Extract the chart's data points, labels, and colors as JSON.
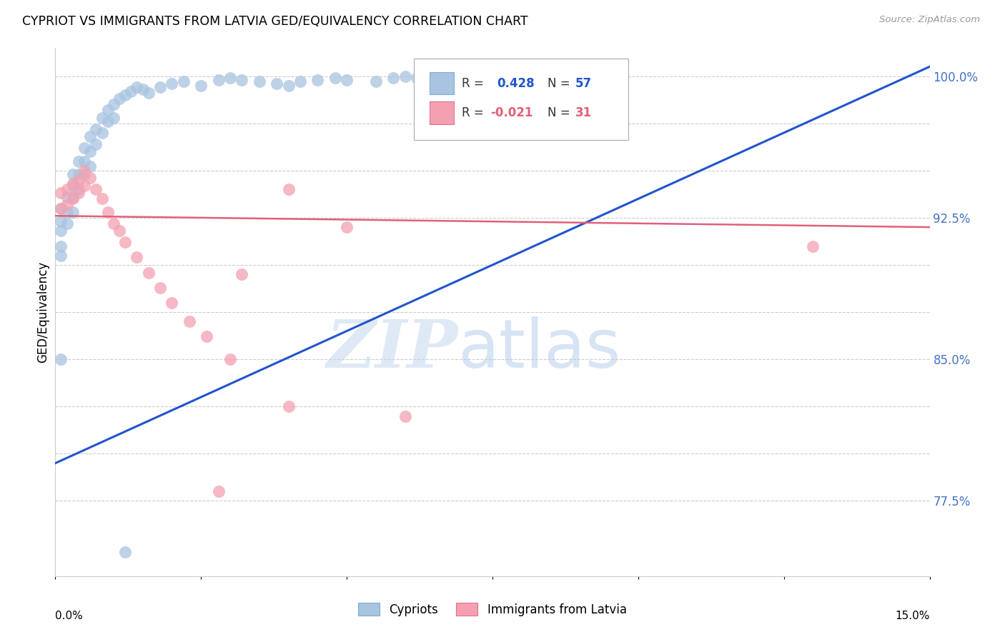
{
  "title": "CYPRIOT VS IMMIGRANTS FROM LATVIA GED/EQUIVALENCY CORRELATION CHART",
  "source": "Source: ZipAtlas.com",
  "ylabel": "GED/Equivalency",
  "xlim": [
    0.0,
    0.15
  ],
  "ylim": [
    0.735,
    1.015
  ],
  "cypriot_color": "#a8c4e0",
  "cypriot_edge": "#7facd8",
  "latvia_color": "#f4a0b0",
  "latvia_edge": "#e07090",
  "trend_blue": "#2255cc",
  "trend_pink": "#e0607a",
  "ytick_vals": [
    0.775,
    0.85,
    0.925,
    1.0
  ],
  "ytick_labels": [
    "77.5%",
    "85.0%",
    "92.5%",
    "100.0%"
  ],
  "grid_y": [
    0.775,
    0.8,
    0.825,
    0.85,
    0.875,
    0.9,
    0.925,
    0.95,
    0.975,
    1.0
  ],
  "legend_label_blue": "Cypriots",
  "legend_label_pink": "Immigrants from Latvia",
  "blue_x": [
    0.001,
    0.001,
    0.001,
    0.001,
    0.001,
    0.002,
    0.002,
    0.002,
    0.003,
    0.003,
    0.003,
    0.003,
    0.004,
    0.004,
    0.004,
    0.005,
    0.005,
    0.005,
    0.006,
    0.006,
    0.006,
    0.007,
    0.007,
    0.008,
    0.008,
    0.009,
    0.009,
    0.01,
    0.01,
    0.011,
    0.012,
    0.013,
    0.014,
    0.015,
    0.016,
    0.018,
    0.02,
    0.022,
    0.025,
    0.028,
    0.03,
    0.032,
    0.035,
    0.038,
    0.04,
    0.042,
    0.045,
    0.048,
    0.05,
    0.055,
    0.058,
    0.06,
    0.062,
    0.064,
    0.065,
    0.001,
    0.012
  ],
  "blue_y": [
    0.93,
    0.923,
    0.918,
    0.91,
    0.905,
    0.936,
    0.928,
    0.922,
    0.948,
    0.942,
    0.936,
    0.928,
    0.955,
    0.948,
    0.94,
    0.962,
    0.955,
    0.948,
    0.968,
    0.96,
    0.952,
    0.972,
    0.964,
    0.978,
    0.97,
    0.982,
    0.976,
    0.985,
    0.978,
    0.988,
    0.99,
    0.992,
    0.994,
    0.993,
    0.991,
    0.994,
    0.996,
    0.997,
    0.995,
    0.998,
    0.999,
    0.998,
    0.997,
    0.996,
    0.995,
    0.997,
    0.998,
    0.999,
    0.998,
    0.997,
    0.999,
    1.0,
    0.999,
    1.0,
    1.0,
    0.85,
    0.748
  ],
  "pink_x": [
    0.001,
    0.001,
    0.002,
    0.002,
    0.003,
    0.003,
    0.004,
    0.004,
    0.005,
    0.005,
    0.006,
    0.007,
    0.008,
    0.009,
    0.01,
    0.011,
    0.012,
    0.014,
    0.016,
    0.018,
    0.02,
    0.023,
    0.026,
    0.03,
    0.032,
    0.04,
    0.05,
    0.06,
    0.13,
    0.04,
    0.028
  ],
  "pink_y": [
    0.93,
    0.938,
    0.932,
    0.94,
    0.935,
    0.943,
    0.938,
    0.945,
    0.942,
    0.95,
    0.946,
    0.94,
    0.935,
    0.928,
    0.922,
    0.918,
    0.912,
    0.904,
    0.896,
    0.888,
    0.88,
    0.87,
    0.862,
    0.85,
    0.895,
    0.825,
    0.92,
    0.82,
    0.91,
    0.94,
    0.78
  ]
}
